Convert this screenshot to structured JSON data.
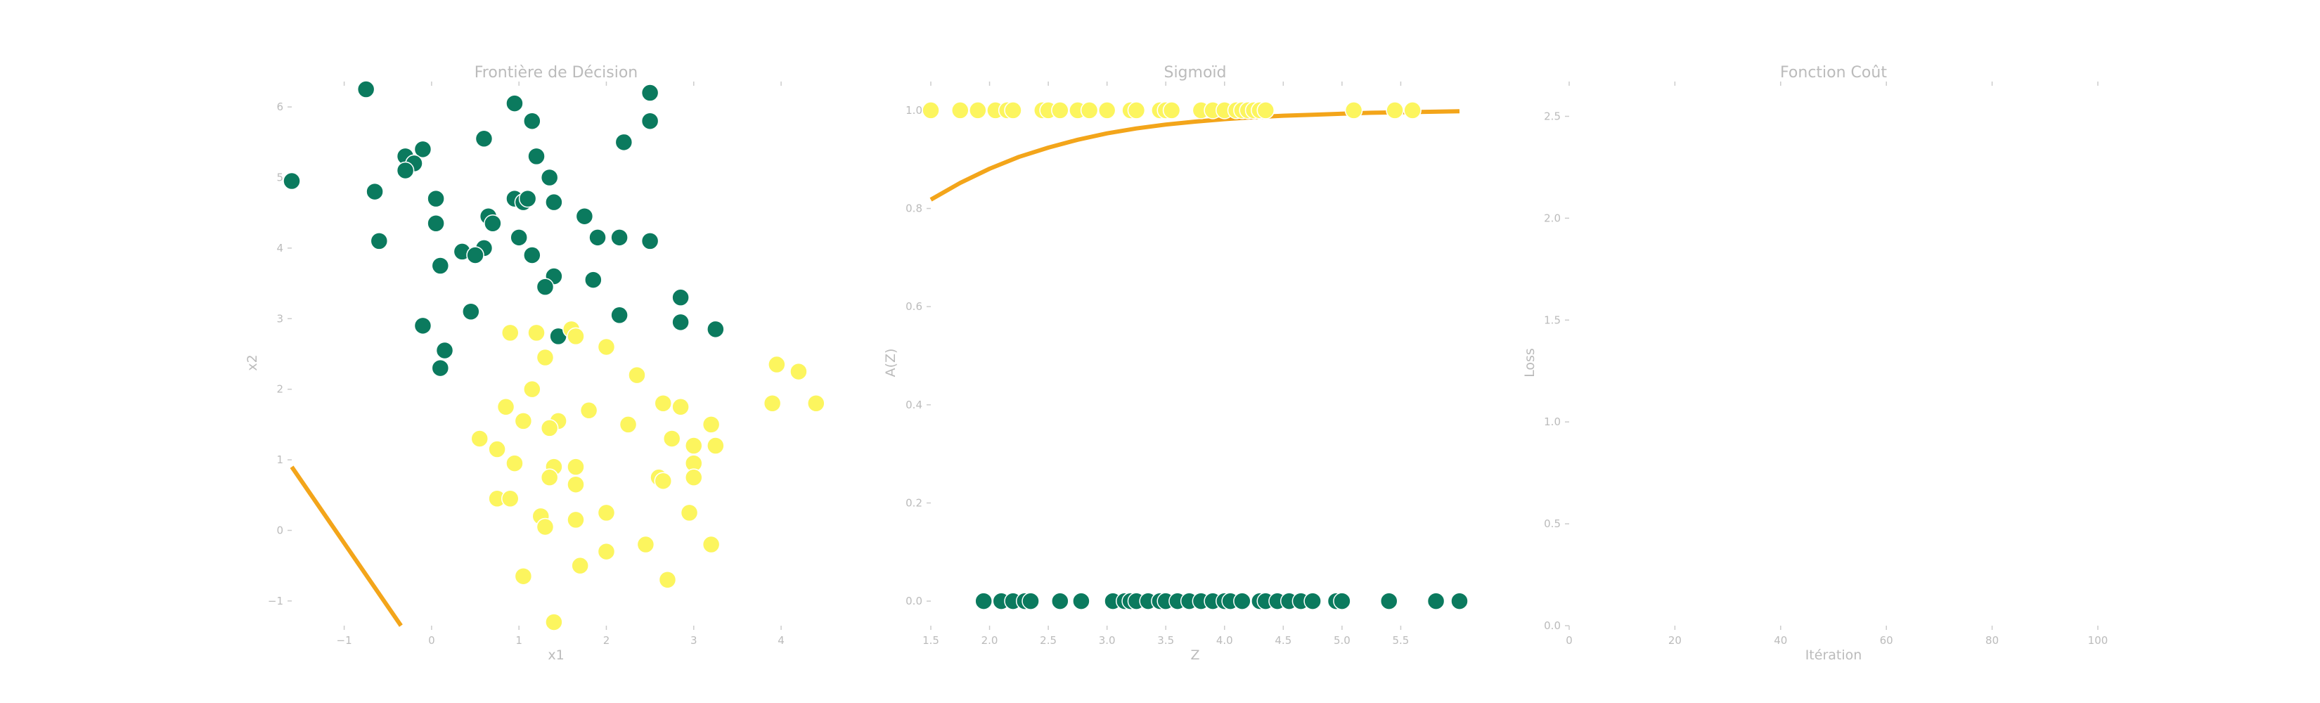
{
  "colors": {
    "class0": "#0b7a5e",
    "class1": "#fcf55e",
    "marker_edge": "#ffffff",
    "curve": "#f3a51a",
    "text": "#bbbbbb",
    "tick": "#cccccc"
  },
  "chart_data": [
    {
      "type": "scatter",
      "title": "Frontière de Décision",
      "xlabel": "x1",
      "ylabel": "x2",
      "xlim": [
        -1.6,
        4.45
      ],
      "ylim": [
        -1.35,
        6.3
      ],
      "x_ticks": [
        "−1",
        "0",
        "1",
        "2",
        "3",
        "4"
      ],
      "x_tick_values": [
        -1,
        0,
        1,
        2,
        3,
        4
      ],
      "y_ticks": [
        "−1",
        "0",
        "1",
        "2",
        "3",
        "4",
        "5",
        "6"
      ],
      "y_tick_values": [
        -1,
        0,
        1,
        2,
        3,
        4,
        5,
        6
      ],
      "grid": false,
      "series": [
        {
          "points": [
            [
              -0.75,
              6.25
            ],
            [
              0.95,
              6.05
            ],
            [
              2.5,
              6.2
            ],
            [
              1.15,
              5.8
            ],
            [
              2.5,
              5.8
            ],
            [
              0.6,
              5.55
            ],
            [
              2.2,
              5.5
            ],
            [
              -0.3,
              5.3
            ],
            [
              -0.1,
              5.4
            ],
            [
              -0.2,
              5.2
            ],
            [
              -0.3,
              5.1
            ],
            [
              1.2,
              5.3
            ],
            [
              -1.6,
              4.95
            ],
            [
              1.35,
              5.0
            ],
            [
              -0.65,
              4.8
            ],
            [
              0.05,
              4.7
            ],
            [
              0.95,
              4.7
            ],
            [
              1.05,
              4.65
            ],
            [
              1.1,
              4.7
            ],
            [
              1.4,
              4.65
            ],
            [
              0.65,
              4.45
            ],
            [
              0.7,
              4.35
            ],
            [
              1.75,
              4.45
            ],
            [
              0.05,
              4.35
            ],
            [
              -0.6,
              4.1
            ],
            [
              1.0,
              4.15
            ],
            [
              1.9,
              4.15
            ],
            [
              2.15,
              4.15
            ],
            [
              2.5,
              4.1
            ],
            [
              0.6,
              4.0
            ],
            [
              0.35,
              3.95
            ],
            [
              0.5,
              3.9
            ],
            [
              1.15,
              3.9
            ],
            [
              0.1,
              3.75
            ],
            [
              1.4,
              3.6
            ],
            [
              1.85,
              3.55
            ],
            [
              1.3,
              3.45
            ],
            [
              2.85,
              3.3
            ],
            [
              0.45,
              3.1
            ],
            [
              2.15,
              3.05
            ],
            [
              2.85,
              2.95
            ],
            [
              3.25,
              2.85
            ],
            [
              -0.1,
              2.9
            ],
            [
              1.45,
              2.75
            ],
            [
              0.15,
              2.55
            ],
            [
              0.1,
              2.3
            ]
          ]
        },
        {
          "points": [
            [
              0.9,
              2.8
            ],
            [
              1.2,
              2.8
            ],
            [
              1.6,
              2.85
            ],
            [
              1.65,
              2.75
            ],
            [
              2.0,
              2.6
            ],
            [
              1.3,
              2.45
            ],
            [
              3.95,
              2.35
            ],
            [
              4.2,
              2.25
            ],
            [
              2.35,
              2.2
            ],
            [
              1.15,
              2.0
            ],
            [
              0.85,
              1.75
            ],
            [
              1.8,
              1.7
            ],
            [
              2.65,
              1.8
            ],
            [
              2.85,
              1.75
            ],
            [
              4.4,
              1.8
            ],
            [
              3.9,
              1.8
            ],
            [
              1.05,
              1.55
            ],
            [
              1.45,
              1.55
            ],
            [
              2.25,
              1.5
            ],
            [
              3.2,
              1.5
            ],
            [
              1.35,
              1.45
            ],
            [
              0.55,
              1.3
            ],
            [
              2.75,
              1.3
            ],
            [
              0.75,
              1.15
            ],
            [
              3.0,
              1.2
            ],
            [
              3.25,
              1.2
            ],
            [
              0.95,
              0.95
            ],
            [
              1.4,
              0.9
            ],
            [
              1.65,
              0.9
            ],
            [
              3.0,
              0.95
            ],
            [
              1.35,
              0.75
            ],
            [
              2.6,
              0.75
            ],
            [
              2.65,
              0.7
            ],
            [
              1.65,
              0.65
            ],
            [
              3.0,
              0.75
            ],
            [
              0.75,
              0.45
            ],
            [
              0.9,
              0.45
            ],
            [
              1.25,
              0.2
            ],
            [
              1.65,
              0.15
            ],
            [
              2.0,
              0.25
            ],
            [
              2.95,
              0.25
            ],
            [
              1.3,
              0.05
            ],
            [
              2.45,
              -0.2
            ],
            [
              3.2,
              -0.2
            ],
            [
              2.0,
              -0.3
            ],
            [
              1.7,
              -0.5
            ],
            [
              1.05,
              -0.65
            ],
            [
              2.7,
              -0.7
            ],
            [
              1.4,
              -1.3
            ]
          ]
        }
      ],
      "boundary_line": {
        "x": [
          -1.6,
          -0.35
        ],
        "y": [
          0.9,
          -1.35
        ]
      }
    },
    {
      "type": "scatter",
      "title": "Sigmoïd",
      "xlabel": "Z",
      "ylabel": "A(Z)",
      "xlim": [
        1.5,
        6.0
      ],
      "ylim": [
        -0.05,
        1.05
      ],
      "x_ticks": [
        "1.5",
        "2.0",
        "2.5",
        "3.0",
        "3.5",
        "4.0",
        "4.5",
        "5.0",
        "5.5"
      ],
      "x_tick_values": [
        1.5,
        2.0,
        2.5,
        3.0,
        3.5,
        4.0,
        4.5,
        5.0,
        5.5
      ],
      "y_ticks": [
        "0.0",
        "0.2",
        "0.4",
        "0.6",
        "0.8",
        "1.0"
      ],
      "y_tick_values": [
        0.0,
        0.2,
        0.4,
        0.6,
        0.8,
        1.0
      ],
      "grid": false,
      "series": [
        {
          "points": [
            [
              1.95,
              0
            ],
            [
              2.1,
              0
            ],
            [
              2.2,
              0
            ],
            [
              2.3,
              0
            ],
            [
              2.35,
              0
            ],
            [
              2.6,
              0
            ],
            [
              2.78,
              0
            ],
            [
              3.05,
              0
            ],
            [
              3.15,
              0
            ],
            [
              3.2,
              0
            ],
            [
              3.25,
              0
            ],
            [
              3.35,
              0
            ],
            [
              3.45,
              0
            ],
            [
              3.5,
              0
            ],
            [
              3.6,
              0
            ],
            [
              3.7,
              0
            ],
            [
              3.8,
              0
            ],
            [
              3.9,
              0
            ],
            [
              4.0,
              0
            ],
            [
              4.05,
              0
            ],
            [
              4.15,
              0
            ],
            [
              4.3,
              0
            ],
            [
              4.35,
              0
            ],
            [
              4.45,
              0
            ],
            [
              4.55,
              0
            ],
            [
              4.65,
              0
            ],
            [
              4.75,
              0
            ],
            [
              4.95,
              0
            ],
            [
              5.0,
              0
            ],
            [
              5.4,
              0
            ],
            [
              5.8,
              0
            ],
            [
              6.0,
              0
            ]
          ]
        },
        {
          "points": [
            [
              1.5,
              1
            ],
            [
              1.75,
              1
            ],
            [
              1.9,
              1
            ],
            [
              2.05,
              1
            ],
            [
              2.15,
              1
            ],
            [
              2.2,
              1
            ],
            [
              2.45,
              1
            ],
            [
              2.5,
              1
            ],
            [
              2.6,
              1
            ],
            [
              2.75,
              1
            ],
            [
              2.85,
              1
            ],
            [
              3.0,
              1
            ],
            [
              3.2,
              1
            ],
            [
              3.25,
              1
            ],
            [
              3.45,
              1
            ],
            [
              3.5,
              1
            ],
            [
              3.55,
              1
            ],
            [
              3.8,
              1
            ],
            [
              3.9,
              1
            ],
            [
              4.0,
              1
            ],
            [
              4.1,
              1
            ],
            [
              4.15,
              1
            ],
            [
              4.2,
              1
            ],
            [
              4.25,
              1
            ],
            [
              4.3,
              1
            ],
            [
              4.35,
              1
            ],
            [
              5.1,
              1
            ],
            [
              5.45,
              1
            ],
            [
              5.6,
              1
            ]
          ]
        }
      ],
      "curve": {
        "x": [
          1.5,
          1.75,
          2.0,
          2.25,
          2.5,
          2.75,
          3.0,
          3.25,
          3.5,
          3.75,
          4.0,
          4.25,
          4.5,
          4.75,
          5.0,
          5.25,
          5.5,
          5.75,
          6.0
        ],
        "y": [
          0.818,
          0.852,
          0.881,
          0.905,
          0.924,
          0.94,
          0.953,
          0.963,
          0.971,
          0.977,
          0.982,
          0.986,
          0.989,
          0.991,
          0.993,
          0.995,
          0.996,
          0.997,
          0.998
        ]
      }
    },
    {
      "type": "line",
      "title": "Fonction Coût",
      "xlabel": "Itération",
      "ylabel": "Loss",
      "xlim": [
        0,
        100
      ],
      "ylim": [
        0.0,
        2.65
      ],
      "x_ticks": [
        "0",
        "20",
        "40",
        "60",
        "80",
        "100"
      ],
      "x_tick_values": [
        0,
        20,
        40,
        60,
        80,
        100
      ],
      "y_ticks": [
        "0.0",
        "0.5",
        "1.0",
        "1.5",
        "2.0",
        "2.5"
      ],
      "y_tick_values": [
        0.0,
        0.5,
        1.0,
        1.5,
        2.0,
        2.5
      ],
      "grid": false,
      "series": []
    }
  ]
}
